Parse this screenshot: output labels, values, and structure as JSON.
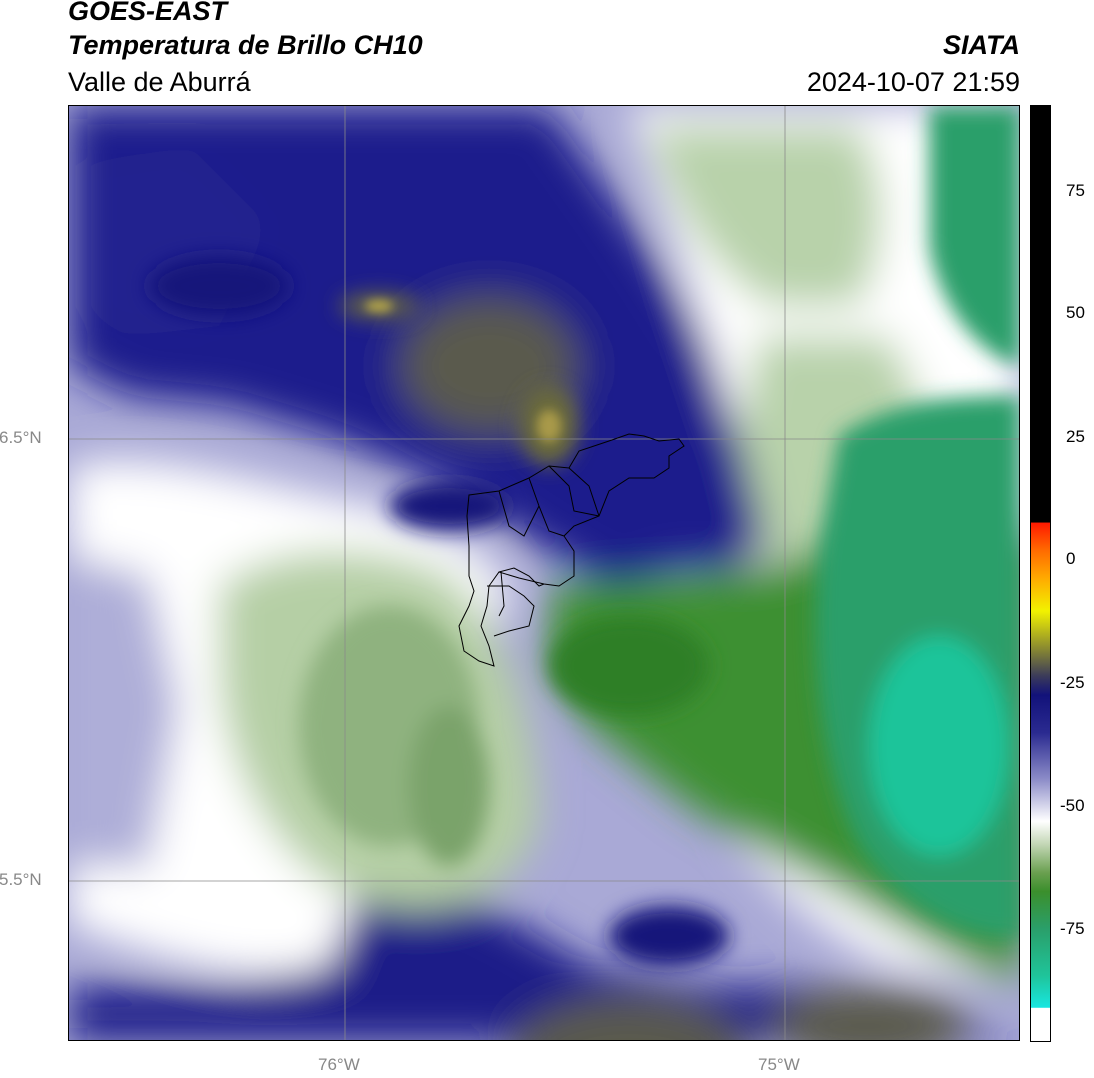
{
  "header": {
    "satellite": "GOES-EAST",
    "product": "Temperatura de Brillo CH10",
    "region": "Valle de Aburrá",
    "agency": "SIATA",
    "datetime": "2024-10-07 21:59"
  },
  "map": {
    "lon_ticks": [
      "76°W",
      "75°W"
    ],
    "lat_ticks": [
      "6.5°N",
      "5.5°N"
    ],
    "gridlines": true,
    "overlay": "Valle de Aburrá municipality boundaries"
  },
  "colorbar": {
    "ticks": [
      "75",
      "50",
      "25",
      "0",
      "-25",
      "-50",
      "-75"
    ],
    "range": [
      -95,
      92
    ],
    "colors": {
      "cyan": "#18d6d2",
      "teal": "#2a9f6a",
      "green": "#3b8f2c",
      "light_green": "#c9dcbf",
      "white": "#ffffff",
      "lavender": "#b9b9dc",
      "navy": "#15158a",
      "olive": "#6b6b3a",
      "yellow": "#f2f200",
      "orange": "#ff8c00",
      "red": "#ff1a00",
      "black": "#000000"
    }
  }
}
